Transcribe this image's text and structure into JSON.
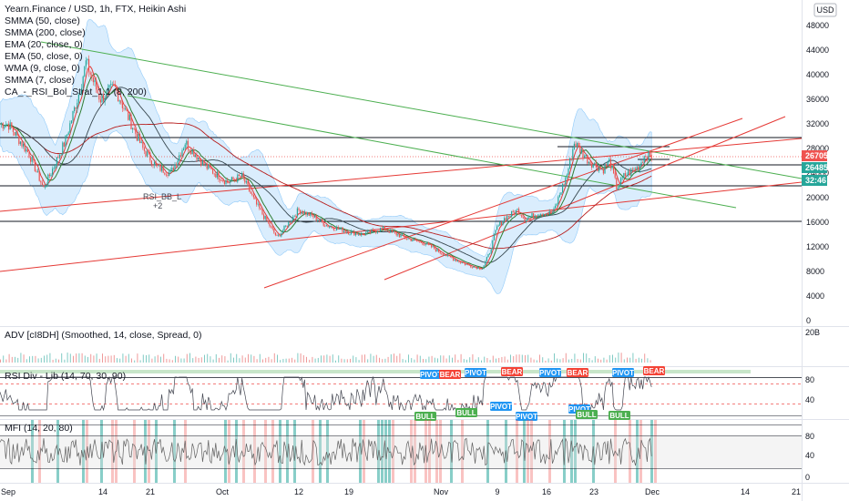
{
  "header": {
    "symbol": "Yearn.Finance / USD, 1h, FTX, Heikin Ashi",
    "currency": "USD"
  },
  "indicators": [
    "SMMA (50, close)",
    "SMMA (200, close)",
    "EMA (20, close, 0)",
    "EMA (50, close, 0)",
    "WMA (9, close, 0)",
    "SMMA (7, close)",
    "CA_-_RSI_Bol_Strat_1.1 (8, 200)"
  ],
  "annotations": {
    "rsi_bb": "RSI_BB_L",
    "rsi_bb_count": "+2",
    "pivot": "PIVOT",
    "bear": "BEAR",
    "bull": "BULL"
  },
  "panes": {
    "adv": "ADV [cI8DH] (Smoothed, 14, close, Spread, 0)",
    "adv_max": "20B",
    "rsi": "RSI Div - Lib (14, 70, 30, 90)",
    "mfi": "MFI (14, 20, 80)"
  },
  "price_tags": [
    {
      "value": "26705",
      "color": "#ef5350"
    },
    {
      "value": "26485",
      "color": "#26a69a"
    },
    {
      "value": "32:46",
      "color": "#26a69a"
    }
  ],
  "colors": {
    "up": "#26a69a",
    "down": "#ef5350",
    "green_line": "#4caf50",
    "red_line": "#e53935",
    "bb_fill": "#bbdefb",
    "pivot": "#2196f3",
    "bear": "#f44336",
    "bull": "#4caf50"
  },
  "chart_data": {
    "type": "candlestick",
    "title": "Yearn.Finance / USD, 1h, FTX, Heikin Ashi",
    "y_ticks": [
      48000,
      44000,
      40000,
      36000,
      32000,
      28000,
      24000,
      20000,
      16000,
      12000,
      8000,
      4000,
      0
    ],
    "x_ticks": [
      "Sep",
      "14",
      "21",
      "Oct",
      "12",
      "19",
      "Nov",
      "9",
      "16",
      "23",
      "Dec",
      "14",
      "21"
    ],
    "price_path": [
      {
        "date": "Sep 01",
        "price": 32000
      },
      {
        "date": "Sep 04",
        "price": 27000
      },
      {
        "date": "Sep 06",
        "price": 21500
      },
      {
        "date": "Sep 09",
        "price": 29000
      },
      {
        "date": "Sep 11",
        "price": 37000
      },
      {
        "date": "Sep 12",
        "price": 42000
      },
      {
        "date": "Sep 14",
        "price": 36000
      },
      {
        "date": "Sep 16",
        "price": 38000
      },
      {
        "date": "Sep 18",
        "price": 33000
      },
      {
        "date": "Sep 20",
        "price": 28000
      },
      {
        "date": "Sep 22",
        "price": 25000
      },
      {
        "date": "Sep 24",
        "price": 24000
      },
      {
        "date": "Sep 26",
        "price": 29000
      },
      {
        "date": "Sep 29",
        "price": 25000
      },
      {
        "date": "Oct 02",
        "price": 22500
      },
      {
        "date": "Oct 04",
        "price": 23500
      },
      {
        "date": "Oct 06",
        "price": 19000
      },
      {
        "date": "Oct 09",
        "price": 13500
      },
      {
        "date": "Oct 12",
        "price": 18000
      },
      {
        "date": "Oct 14",
        "price": 17000
      },
      {
        "date": "Oct 16",
        "price": 15500
      },
      {
        "date": "Oct 19",
        "price": 14500
      },
      {
        "date": "Oct 21",
        "price": 14000
      },
      {
        "date": "Oct 24",
        "price": 15000
      },
      {
        "date": "Oct 27",
        "price": 13500
      },
      {
        "date": "Oct 30",
        "price": 12500
      },
      {
        "date": "Nov 02",
        "price": 10500
      },
      {
        "date": "Nov 05",
        "price": 9000
      },
      {
        "date": "Nov 07",
        "price": 8500
      },
      {
        "date": "Nov 08",
        "price": 11000
      },
      {
        "date": "Nov 09",
        "price": 15000
      },
      {
        "date": "Nov 10",
        "price": 16500
      },
      {
        "date": "Nov 12",
        "price": 18000
      },
      {
        "date": "Nov 13",
        "price": 16500
      },
      {
        "date": "Nov 15",
        "price": 17500
      },
      {
        "date": "Nov 17",
        "price": 17500
      },
      {
        "date": "Nov 19",
        "price": 24000
      },
      {
        "date": "Nov 20",
        "price": 29000
      },
      {
        "date": "Nov 22",
        "price": 26000
      },
      {
        "date": "Nov 24",
        "price": 24500
      },
      {
        "date": "Nov 25",
        "price": 26000
      },
      {
        "date": "Nov 26",
        "price": 21500
      },
      {
        "date": "Nov 27",
        "price": 23500
      },
      {
        "date": "Nov 29",
        "price": 25000
      },
      {
        "date": "Nov 30",
        "price": 27000
      },
      {
        "date": "Dec 01",
        "price": 26700
      }
    ],
    "ylim": [
      0,
      50000
    ]
  }
}
